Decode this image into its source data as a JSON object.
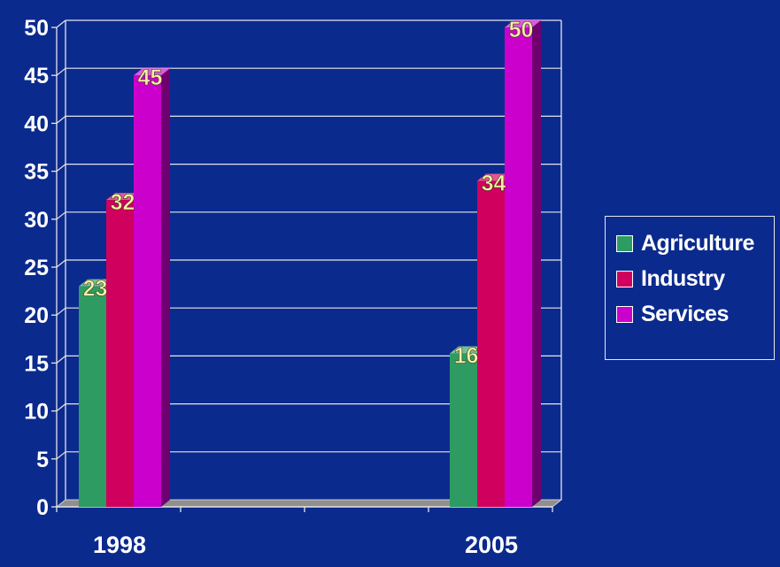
{
  "chart_data": {
    "type": "bar",
    "categories": [
      "1998",
      "2005"
    ],
    "series": [
      {
        "name": "Agriculture",
        "values": [
          23,
          16
        ],
        "color": "#2e9b62"
      },
      {
        "name": "Industry",
        "values": [
          32,
          34
        ],
        "color": "#d0005e"
      },
      {
        "name": "Services",
        "values": [
          45,
          50
        ],
        "color": "#cc00cc"
      }
    ],
    "ylim": [
      0,
      50
    ],
    "yticks": [
      "0",
      "5",
      "10",
      "15",
      "20",
      "25",
      "30",
      "35",
      "40",
      "45",
      "50"
    ],
    "grid": true,
    "legend_position": "right",
    "data_labels": true,
    "style": "3d",
    "background_color": "#0b2a8e",
    "gridline_color": "#e6e6e6",
    "label_color": "#f5f0a8"
  }
}
